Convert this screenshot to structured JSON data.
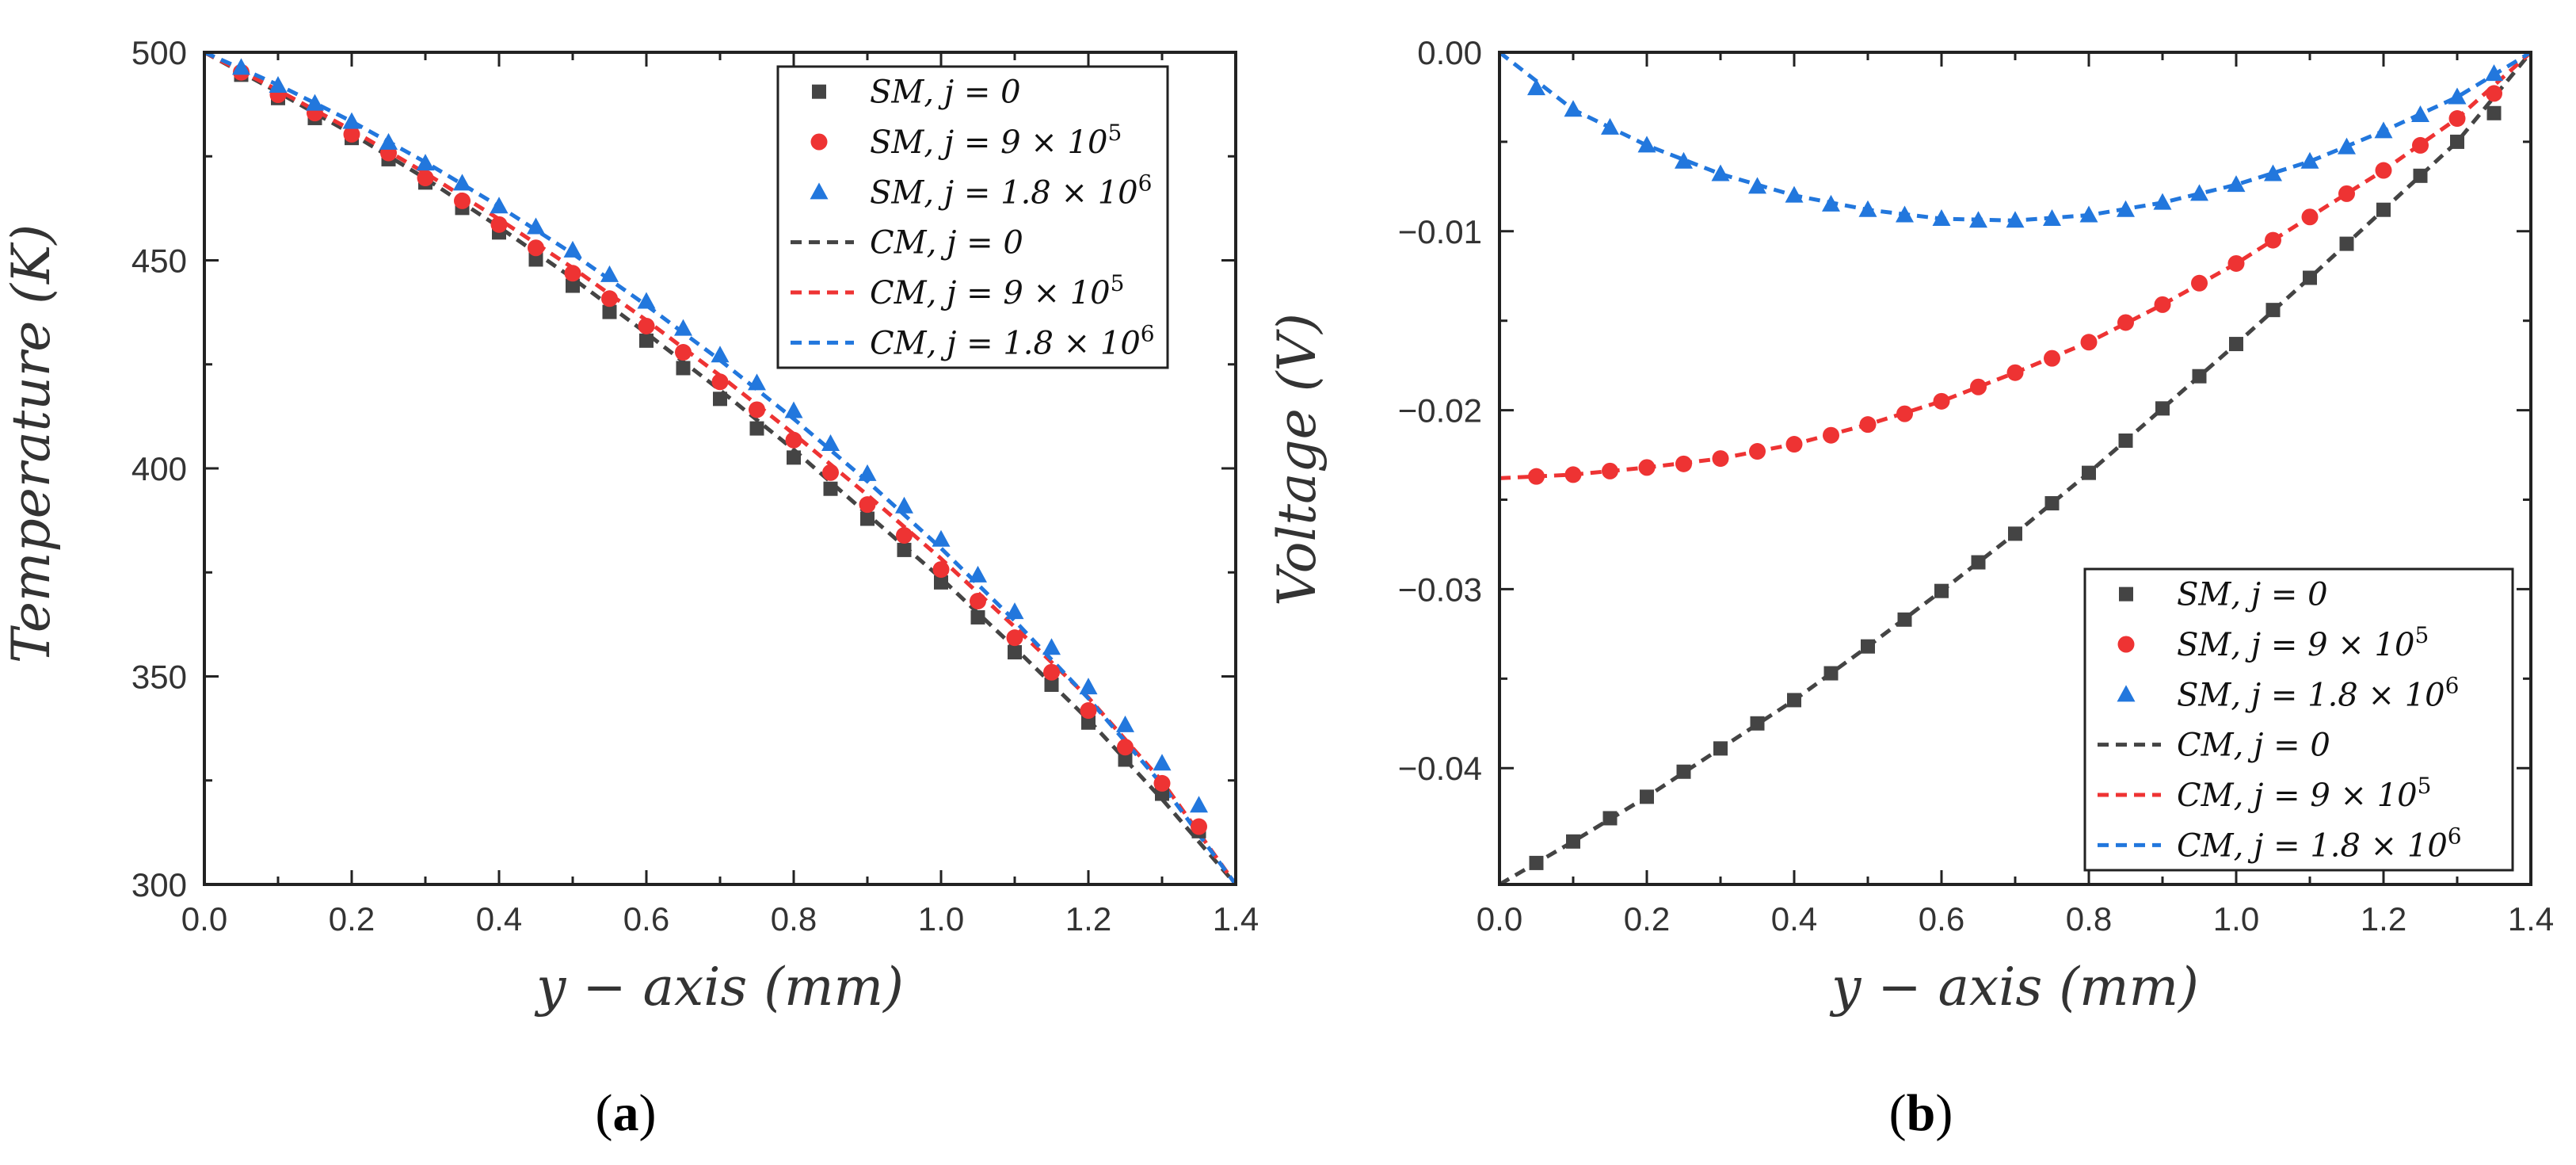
{
  "colors": {
    "SM0": "#444444",
    "SM1": "#ee3333",
    "SM2": "#2277dd"
  },
  "chart_data": [
    {
      "type": "line",
      "panel_label": "a",
      "title": "",
      "xlabel": "y − axis (mm)",
      "ylabel": "Temperature (K)",
      "xlim": [
        0.0,
        1.4
      ],
      "ylim": [
        300,
        500
      ],
      "xticks": [
        "0.0",
        "0.2",
        "0.4",
        "0.6",
        "0.8",
        "1.0",
        "1.2",
        "1.4"
      ],
      "yticks": [
        "300",
        "350",
        "400",
        "450",
        "500"
      ],
      "grid": false,
      "legend_position": "top-right",
      "legend": [
        "SM, j = 0",
        "SM, j = 9 × 10^5",
        "SM, j = 1.8 × 10^6",
        "CM, j = 0",
        "CM, j = 9 × 10^5",
        "CM, j = 1.8 × 10^6"
      ],
      "series": [
        {
          "name": "SM, j = 0",
          "style": "square-marker",
          "color": "#444444",
          "x": [
            0.05,
            0.1,
            0.15,
            0.2,
            0.25,
            0.3,
            0.35,
            0.4,
            0.45,
            0.5,
            0.55,
            0.6,
            0.65,
            0.7,
            0.75,
            0.8,
            0.85,
            0.9,
            0.95,
            1.0,
            1.05,
            1.1,
            1.15,
            1.2,
            1.25,
            1.3,
            1.35
          ],
          "y": [
            494.6,
            489.0,
            484.2,
            479.4,
            474.3,
            468.7,
            462.6,
            456.7,
            450.2,
            443.9,
            437.6,
            430.7,
            424.1,
            416.7,
            409.6,
            402.6,
            395.1,
            387.9,
            380.4,
            372.6,
            364.2,
            355.8,
            348.0,
            338.9,
            330.0,
            321.8,
            312.8
          ]
        },
        {
          "name": "SM, j = 9 × 10^5",
          "style": "circle-marker",
          "color": "#ee3333",
          "x": [
            0.05,
            0.1,
            0.15,
            0.2,
            0.25,
            0.3,
            0.35,
            0.4,
            0.45,
            0.5,
            0.55,
            0.6,
            0.65,
            0.7,
            0.75,
            0.8,
            0.85,
            0.9,
            0.95,
            1.0,
            1.05,
            1.1,
            1.15,
            1.2,
            1.25,
            1.3,
            1.35
          ],
          "y": [
            495.2,
            489.8,
            485.4,
            480.3,
            475.8,
            469.8,
            464.3,
            458.6,
            453.0,
            446.9,
            440.8,
            434.2,
            427.9,
            420.8,
            414.1,
            406.8,
            399.0,
            391.3,
            383.9,
            375.7,
            368.1,
            359.3,
            351.0,
            341.8,
            333.0,
            324.3,
            313.9
          ]
        },
        {
          "name": "SM, j = 1.8 × 10^6",
          "style": "triangle-marker",
          "color": "#2277dd",
          "x": [
            0.05,
            0.1,
            0.15,
            0.2,
            0.25,
            0.3,
            0.35,
            0.4,
            0.45,
            0.5,
            0.55,
            0.6,
            0.65,
            0.7,
            0.75,
            0.8,
            0.85,
            0.9,
            0.95,
            1.0,
            1.05,
            1.1,
            1.15,
            1.2,
            1.25,
            1.3,
            1.35
          ],
          "y": [
            496.3,
            492.0,
            487.7,
            483.3,
            478.3,
            473.3,
            468.5,
            463.0,
            458.0,
            452.4,
            446.5,
            440.1,
            433.6,
            427.2,
            420.5,
            413.8,
            405.9,
            398.7,
            390.9,
            382.9,
            374.3,
            365.5,
            356.9,
            347.4,
            338.3,
            329.1,
            319.0
          ]
        },
        {
          "name": "CM, j = 0",
          "style": "dashed-line",
          "color": "#444444",
          "x": [
            0.0,
            0.1,
            0.2,
            0.3,
            0.4,
            0.5,
            0.6,
            0.7,
            0.8,
            0.9,
            1.0,
            1.1,
            1.2,
            1.3,
            1.4
          ],
          "y": [
            500,
            490.4,
            480.4,
            469.7,
            458.0,
            445.7,
            432.5,
            418.8,
            404.5,
            389.0,
            373.6,
            356.9,
            339.6,
            320.5,
            300
          ]
        },
        {
          "name": "CM, j = 9 × 10^5",
          "style": "dashed-line",
          "color": "#ee3333",
          "x": [
            0.0,
            0.1,
            0.2,
            0.3,
            0.4,
            0.5,
            0.6,
            0.7,
            0.8,
            0.9,
            1.0,
            1.1,
            1.2,
            1.3,
            1.4
          ],
          "y": [
            500,
            490.9,
            481.3,
            471.0,
            459.9,
            448.2,
            435.6,
            422.3,
            408.3,
            393.6,
            378.3,
            361.9,
            344.9,
            324.8,
            300
          ]
        },
        {
          "name": "CM, j = 1.8 × 10^6",
          "style": "dashed-line",
          "color": "#2277dd",
          "x": [
            0.0,
            0.1,
            0.2,
            0.3,
            0.4,
            0.5,
            0.6,
            0.7,
            0.8,
            0.9,
            1.0,
            1.1,
            1.2,
            1.3,
            1.4
          ],
          "y": [
            500,
            492.2,
            483.4,
            473.6,
            463.0,
            451.6,
            439.2,
            426.0,
            411.9,
            396.9,
            380.8,
            363.4,
            344.7,
            324.0,
            300
          ]
        }
      ]
    },
    {
      "type": "line",
      "panel_label": "b",
      "title": "",
      "xlabel": "y − axis (mm)",
      "ylabel": "Voltage (V)",
      "xlim": [
        0.0,
        1.4
      ],
      "ylim": [
        -0.0465,
        0.0
      ],
      "xticks": [
        "0.0",
        "0.2",
        "0.4",
        "0.6",
        "0.8",
        "1.0",
        "1.2",
        "1.4"
      ],
      "yticks": [
        "-0.04",
        "-0.03",
        "-0.02",
        "-0.01",
        "0.00"
      ],
      "yticks_values": [
        -0.04,
        -0.03,
        -0.02,
        -0.01,
        0.0
      ],
      "grid": false,
      "legend_position": "bottom-right",
      "legend": [
        "SM, j = 0",
        "SM, j = 9 × 10^5",
        "SM, j = 1.8 × 10^6",
        "CM, j = 0",
        "CM, j = 9 × 10^5",
        "CM, j = 1.8 × 10^6"
      ],
      "series": [
        {
          "name": "SM, j = 0",
          "style": "square-marker",
          "color": "#444444",
          "x": [
            0.05,
            0.1,
            0.15,
            0.2,
            0.25,
            0.3,
            0.35,
            0.4,
            0.45,
            0.5,
            0.55,
            0.6,
            0.65,
            0.7,
            0.75,
            0.8,
            0.85,
            0.9,
            0.95,
            1.0,
            1.05,
            1.1,
            1.15,
            1.2,
            1.25,
            1.3,
            1.35
          ],
          "y": [
            -0.0453,
            -0.0441,
            -0.0428,
            -0.0416,
            -0.0402,
            -0.0389,
            -0.0375,
            -0.0362,
            -0.0347,
            -0.0332,
            -0.0317,
            -0.0301,
            -0.0285,
            -0.0269,
            -0.0252,
            -0.0235,
            -0.0217,
            -0.0199,
            -0.0181,
            -0.0163,
            -0.0144,
            -0.0126,
            -0.0107,
            -0.0088,
            -0.0069,
            -0.005,
            -0.0034
          ]
        },
        {
          "name": "SM, j = 9 × 10^5",
          "style": "circle-marker",
          "color": "#ee3333",
          "x": [
            0.05,
            0.1,
            0.15,
            0.2,
            0.25,
            0.3,
            0.35,
            0.4,
            0.45,
            0.5,
            0.55,
            0.6,
            0.65,
            0.7,
            0.75,
            0.8,
            0.85,
            0.9,
            0.95,
            1.0,
            1.05,
            1.1,
            1.15,
            1.2,
            1.25,
            1.3,
            1.35
          ],
          "y": [
            -0.0237,
            -0.0236,
            -0.0234,
            -0.0232,
            -0.023,
            -0.0227,
            -0.0223,
            -0.0219,
            -0.0214,
            -0.0208,
            -0.0202,
            -0.0195,
            -0.0187,
            -0.0179,
            -0.0171,
            -0.0162,
            -0.0151,
            -0.0141,
            -0.0129,
            -0.0118,
            -0.0105,
            -0.0092,
            -0.0079,
            -0.0066,
            -0.0052,
            -0.0037,
            -0.0023
          ]
        },
        {
          "name": "SM, j = 1.8 × 10^6",
          "style": "triangle-marker",
          "color": "#2277dd",
          "x": [
            0.05,
            0.1,
            0.15,
            0.2,
            0.25,
            0.3,
            0.35,
            0.4,
            0.45,
            0.5,
            0.55,
            0.6,
            0.65,
            0.7,
            0.75,
            0.8,
            0.85,
            0.9,
            0.95,
            1.0,
            1.05,
            1.1,
            1.15,
            1.2,
            1.25,
            1.3,
            1.35
          ],
          "y": [
            -0.002,
            -0.0032,
            -0.0042,
            -0.0052,
            -0.0061,
            -0.0068,
            -0.0075,
            -0.008,
            -0.0085,
            -0.0088,
            -0.0091,
            -0.0093,
            -0.0094,
            -0.0094,
            -0.0093,
            -0.0091,
            -0.0088,
            -0.0084,
            -0.0079,
            -0.0074,
            -0.0068,
            -0.0061,
            -0.0053,
            -0.0044,
            -0.0035,
            -0.0025,
            -0.0012
          ]
        },
        {
          "name": "CM, j = 0",
          "style": "dashed-line",
          "color": "#444444",
          "x": [
            0.0,
            0.1,
            0.2,
            0.3,
            0.4,
            0.5,
            0.6,
            0.7,
            0.8,
            0.9,
            1.0,
            1.1,
            1.2,
            1.3,
            1.4
          ],
          "y": [
            -0.0465,
            -0.0441,
            -0.0416,
            -0.0389,
            -0.0362,
            -0.0332,
            -0.0301,
            -0.0269,
            -0.0235,
            -0.0199,
            -0.0163,
            -0.0126,
            -0.0088,
            -0.005,
            0.0
          ]
        },
        {
          "name": "CM, j = 9 × 10^5",
          "style": "dashed-line",
          "color": "#ee3333",
          "x": [
            0.0,
            0.1,
            0.2,
            0.3,
            0.4,
            0.5,
            0.6,
            0.7,
            0.8,
            0.9,
            1.0,
            1.1,
            1.2,
            1.3,
            1.4
          ],
          "y": [
            -0.0238,
            -0.0236,
            -0.0232,
            -0.0227,
            -0.0219,
            -0.0208,
            -0.0195,
            -0.0179,
            -0.0162,
            -0.0141,
            -0.0118,
            -0.0092,
            -0.0066,
            -0.0037,
            0.0
          ]
        },
        {
          "name": "CM, j = 1.8 × 10^6",
          "style": "dashed-line",
          "color": "#2277dd",
          "x": [
            0.0,
            0.1,
            0.2,
            0.3,
            0.4,
            0.5,
            0.6,
            0.7,
            0.8,
            0.9,
            1.0,
            1.1,
            1.2,
            1.3,
            1.4
          ],
          "y": [
            0.0,
            -0.0032,
            -0.0052,
            -0.0068,
            -0.008,
            -0.0088,
            -0.0093,
            -0.0094,
            -0.0091,
            -0.0084,
            -0.0074,
            -0.0061,
            -0.0044,
            -0.0025,
            0.0
          ]
        }
      ]
    }
  ]
}
